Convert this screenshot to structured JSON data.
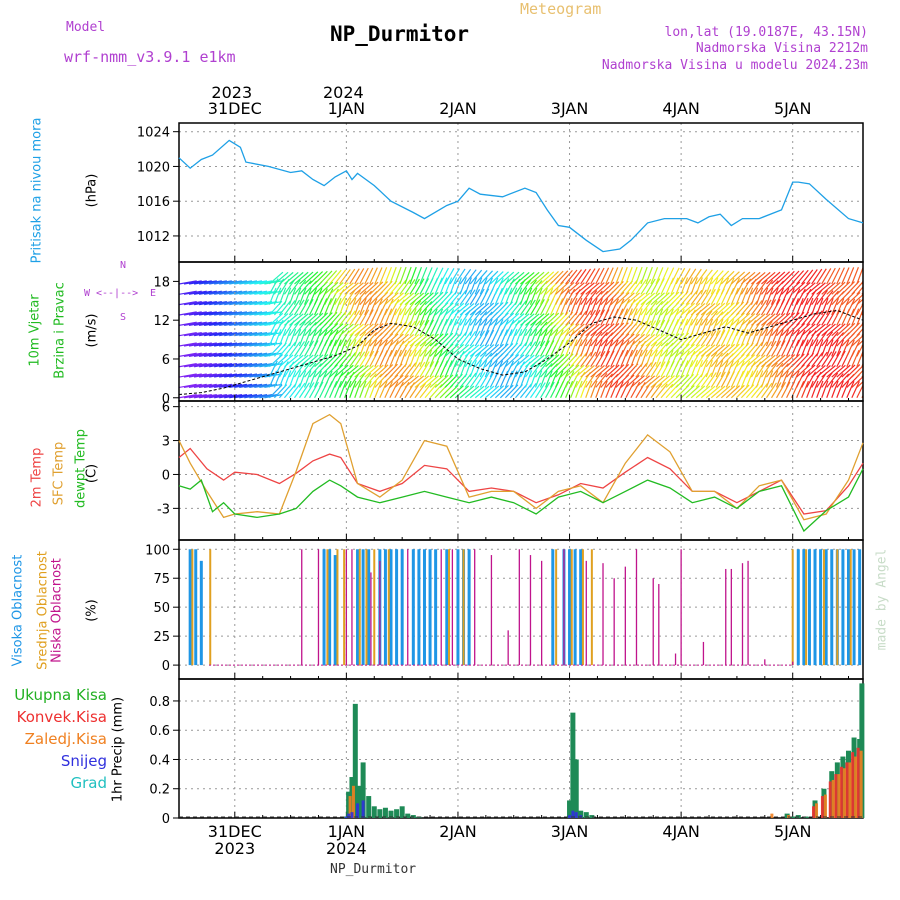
{
  "header": {
    "model_label": "Model",
    "model_value": "wrf-nmm_v3.9.1 e1km",
    "title": "NP_Durmitor",
    "meteogram": "Meteogram",
    "lonlat": "lon,lat (19.0187E, 43.15N)",
    "altitude": "Nadmorska Visina 2212m",
    "model_altitude": "Nadmorska Visina u modelu 2024.23m",
    "watermark": "made by Angel"
  },
  "time_axis": {
    "top_years": [
      {
        "t": 0.5,
        "text": "2023"
      },
      {
        "t": 1.5,
        "text": "2024"
      }
    ],
    "days": [
      {
        "t": 0.5,
        "label": "31DEC"
      },
      {
        "t": 1.5,
        "label": "1JAN"
      },
      {
        "t": 2.5,
        "label": "2JAN"
      },
      {
        "t": 3.5,
        "label": "3JAN"
      },
      {
        "t": 4.5,
        "label": "4JAN"
      },
      {
        "t": 5.5,
        "label": "5JAN"
      }
    ],
    "t_range": [
      0,
      6.13
    ],
    "bottom_years": [
      {
        "t": 0.5,
        "text": "2023"
      },
      {
        "t": 1.5,
        "text": "2024"
      }
    ],
    "footer": "NP_Durmitor"
  },
  "panels": {
    "pressure": {
      "label": "Pritisak na nivou mora",
      "unit": "(hPa)",
      "ticks": [
        "1012",
        "1016",
        "1020",
        "1024"
      ]
    },
    "wind": {
      "label1": "10m Vjetar",
      "label2": "Brzina i Pravac",
      "unit": "(m/s)",
      "ticks": [
        "0",
        "6",
        "12",
        "18"
      ],
      "compass": {
        "n": "N",
        "s": "S",
        "w": "W",
        "e": "E"
      }
    },
    "temp": {
      "l1": "2m Temp",
      "l2": "SFC Temp",
      "l3": "dewpt Temp",
      "unit": "(C)",
      "ticks": [
        "-3",
        "0",
        "3",
        "6"
      ]
    },
    "cloud": {
      "l1": "Visoka Oblacnost",
      "l2": "Srednja Oblacnost",
      "l3": "Niska Oblacnost",
      "unit": "(%)",
      "ticks": [
        "0",
        "25",
        "50",
        "75",
        "100"
      ]
    },
    "precip": {
      "label": "1hr Precip (mm)",
      "ticks": [
        "0",
        "0.2",
        "0.4",
        "0.6",
        "0.8"
      ],
      "legend": [
        {
          "text": "Ukupna Kisa",
          "color": "#22b022"
        },
        {
          "text": "Konvek.Kisa",
          "color": "#ee3030"
        },
        {
          "text": "Zaledj.Kisa",
          "color": "#f08020"
        },
        {
          "text": "Snijeg",
          "color": "#3030dd"
        },
        {
          "text": "Grad",
          "color": "#20c0c0"
        }
      ]
    }
  },
  "colors": {
    "pressure": "#1ea0e6",
    "t2m": "#ee4444",
    "tsfc": "#e0a030",
    "dewpt": "#22bb22",
    "cloud_high": "#1e96e6",
    "cloud_mid": "#e0a020",
    "cloud_low": "#c0148c",
    "model": "#b040d0"
  },
  "chart_data": [
    {
      "type": "line",
      "name_hint": "pressure",
      "ylabel": "Pritisak na nivou mora (hPa)",
      "ylim": [
        1009,
        1025
      ],
      "x": [
        0,
        0.1,
        0.2,
        0.3,
        0.45,
        0.55,
        0.6,
        0.8,
        1.0,
        1.1,
        1.2,
        1.3,
        1.4,
        1.5,
        1.55,
        1.6,
        1.75,
        1.9,
        2.1,
        2.2,
        2.4,
        2.5,
        2.6,
        2.7,
        2.9,
        3.1,
        3.2,
        3.3,
        3.4,
        3.5,
        3.65,
        3.8,
        3.95,
        4.05,
        4.2,
        4.35,
        4.55,
        4.65,
        4.75,
        4.85,
        4.95,
        5.05,
        5.2,
        5.4,
        5.5,
        5.55,
        5.65,
        5.8,
        6.0,
        6.13
      ],
      "y": [
        1021,
        1019.8,
        1020.8,
        1021.3,
        1023,
        1022.2,
        1020.5,
        1020,
        1019.3,
        1019.5,
        1018.5,
        1017.8,
        1018.8,
        1019.5,
        1018.5,
        1019.2,
        1017.8,
        1016,
        1014.7,
        1014,
        1015.5,
        1016,
        1017.5,
        1016.8,
        1016.5,
        1017.5,
        1017,
        1015,
        1013.2,
        1013,
        1011.5,
        1010.2,
        1010.5,
        1011.5,
        1013.5,
        1014,
        1014,
        1013.5,
        1014.2,
        1014.5,
        1013.2,
        1014,
        1014,
        1015,
        1018.2,
        1018.2,
        1018,
        1016.2,
        1014,
        1013.5
      ]
    },
    {
      "type": "line",
      "name_hint": "temperature",
      "ylabel": "(C)",
      "ylim": [
        -5.8,
        6.5
      ],
      "series": [
        {
          "name": "2m Temp",
          "x": [
            0,
            0.1,
            0.25,
            0.4,
            0.5,
            0.7,
            0.9,
            1.05,
            1.2,
            1.35,
            1.45,
            1.6,
            1.8,
            2.0,
            2.2,
            2.4,
            2.6,
            2.8,
            3.0,
            3.2,
            3.4,
            3.6,
            3.8,
            4.0,
            4.2,
            4.4,
            4.6,
            4.8,
            5.0,
            5.2,
            5.4,
            5.6,
            5.8,
            6.0,
            6.13
          ],
          "y": [
            1.5,
            2.3,
            0.5,
            -0.5,
            0.2,
            0,
            -0.8,
            0.1,
            1.2,
            1.8,
            1.5,
            -0.8,
            -1.5,
            -0.8,
            0.8,
            0.5,
            -1.5,
            -1.2,
            -1.5,
            -2.5,
            -1.8,
            -0.8,
            -1.2,
            0.2,
            1.5,
            0.5,
            -1.5,
            -1.5,
            -2.5,
            -1.5,
            -0.5,
            -3.5,
            -3.2,
            -1,
            1
          ]
        },
        {
          "name": "SFC Temp",
          "x": [
            0,
            0.1,
            0.25,
            0.4,
            0.5,
            0.7,
            0.9,
            1.05,
            1.2,
            1.35,
            1.45,
            1.6,
            1.8,
            2.0,
            2.2,
            2.4,
            2.6,
            2.8,
            3.0,
            3.2,
            3.4,
            3.6,
            3.8,
            4.0,
            4.2,
            4.4,
            4.6,
            4.8,
            5.0,
            5.2,
            5.4,
            5.6,
            5.8,
            6.0,
            6.13
          ],
          "y": [
            3,
            1,
            -1.5,
            -3.8,
            -3.5,
            -3.3,
            -3.5,
            0.3,
            4.5,
            5.3,
            4.5,
            -0.8,
            -2,
            -0.5,
            3,
            2.5,
            -2,
            -1.5,
            -1.5,
            -3,
            -1.5,
            -1,
            -2.5,
            1,
            3.5,
            2,
            -1.5,
            -1.5,
            -3,
            -1,
            -0.5,
            -4,
            -3.5,
            -0.5,
            2.8
          ]
        },
        {
          "name": "dewpt Temp",
          "x": [
            0,
            0.1,
            0.2,
            0.3,
            0.4,
            0.5,
            0.7,
            0.9,
            1.05,
            1.2,
            1.35,
            1.45,
            1.6,
            1.8,
            2.0,
            2.2,
            2.4,
            2.6,
            2.8,
            3.0,
            3.2,
            3.4,
            3.6,
            3.8,
            4.0,
            4.2,
            4.4,
            4.6,
            4.8,
            5.0,
            5.2,
            5.4,
            5.6,
            5.8,
            6.0,
            6.13
          ],
          "y": [
            -1,
            -1.3,
            -0.5,
            -3.3,
            -2.5,
            -3.5,
            -3.8,
            -3.5,
            -3,
            -1.5,
            -0.5,
            -1,
            -2,
            -2.5,
            -2,
            -1.5,
            -2,
            -2.5,
            -2,
            -2.5,
            -3.5,
            -2,
            -1.5,
            -2.5,
            -1.5,
            -0.5,
            -1.2,
            -2.5,
            -2,
            -3,
            -1.5,
            -1,
            -5,
            -3.2,
            -2,
            0.5
          ]
        }
      ]
    },
    {
      "type": "bar",
      "name_hint": "cloud cover",
      "ylabel": "(%)",
      "ylim": [
        0,
        100
      ],
      "series": [
        {
          "name": "Visoka Oblacnost",
          "x": [
            0.1,
            0.15,
            0.2,
            1.3,
            1.35,
            1.4,
            1.6,
            1.65,
            1.7,
            1.8,
            1.85,
            1.9,
            1.95,
            2.0,
            2.1,
            2.15,
            2.2,
            2.25,
            2.3,
            2.4,
            2.5,
            2.55,
            2.6,
            3.35,
            3.45,
            3.5,
            3.55,
            3.6,
            5.55,
            5.6,
            5.65,
            5.7,
            5.75,
            5.8,
            5.85,
            5.9,
            5.95,
            6.0,
            6.05,
            6.1
          ],
          "values": [
            100,
            100,
            90,
            100,
            100,
            95,
            100,
            100,
            100,
            100,
            100,
            100,
            100,
            100,
            100,
            100,
            100,
            100,
            100,
            100,
            100,
            100,
            100,
            100,
            100,
            100,
            100,
            100,
            100,
            100,
            100,
            100,
            100,
            100,
            100,
            100,
            100,
            100,
            100,
            100
          ]
        },
        {
          "name": "Srednja Oblacnost",
          "x": [
            0.12,
            0.28,
            1.33,
            1.42,
            1.48,
            1.62,
            1.68,
            1.75,
            1.88,
            2.42,
            2.55,
            3.38,
            3.52,
            3.62,
            3.7,
            5.5,
            5.62,
            5.78,
            5.9,
            6.02
          ],
          "values": [
            100,
            100,
            100,
            100,
            100,
            100,
            100,
            100,
            100,
            100,
            100,
            100,
            100,
            100,
            100,
            100,
            100,
            100,
            100,
            100
          ]
        },
        {
          "name": "Niska Oblacnost",
          "x": [
            1.1,
            1.25,
            1.5,
            1.55,
            1.72,
            1.8,
            2.05,
            2.35,
            2.45,
            2.65,
            2.8,
            2.95,
            3.05,
            3.15,
            3.25,
            3.45,
            3.65,
            3.8,
            3.9,
            4.0,
            4.1,
            4.25,
            4.3,
            4.45,
            4.5,
            4.7,
            4.9,
            4.95,
            5.05,
            5.1,
            5.25,
            5.5
          ],
          "values": [
            100,
            100,
            100,
            100,
            80,
            90,
            100,
            100,
            100,
            100,
            95,
            30,
            100,
            95,
            90,
            100,
            90,
            88,
            75,
            85,
            100,
            75,
            70,
            10,
            100,
            20,
            83,
            83,
            88,
            90,
            5,
            3
          ]
        }
      ]
    },
    {
      "type": "bar",
      "name_hint": "precipitation",
      "ylabel": "1hr Precip (mm)",
      "ylim": [
        0,
        0.92
      ],
      "series": [
        {
          "name": "Ukupna Kisa",
          "x": [
            1.5,
            1.52,
            1.55,
            1.58,
            1.62,
            1.65,
            1.7,
            1.75,
            1.8,
            1.85,
            1.9,
            1.95,
            2.0,
            2.05,
            2.1,
            2.15,
            3.5,
            3.53,
            3.56,
            3.6,
            3.65,
            3.7,
            5.45,
            5.5,
            5.55,
            5.62,
            5.7,
            5.78,
            5.85,
            5.9,
            5.95,
            6.0,
            6.05,
            6.1,
            6.12
          ],
          "values": [
            0.01,
            0.18,
            0.28,
            0.78,
            0.22,
            0.38,
            0.15,
            0.08,
            0.06,
            0.07,
            0.05,
            0.06,
            0.08,
            0.03,
            0.02,
            0.01,
            0.12,
            0.72,
            0.4,
            0.05,
            0.04,
            0.02,
            0.03,
            0.01,
            0.02,
            0.01,
            0.12,
            0.2,
            0.32,
            0.38,
            0.42,
            0.46,
            0.55,
            0.54,
            0.92
          ]
        },
        {
          "name": "Konvek.Kisa",
          "x": [
            5.7,
            5.78,
            5.85,
            5.9,
            5.95,
            6.0,
            6.05,
            6.1
          ],
          "values": [
            0.08,
            0.15,
            0.25,
            0.3,
            0.35,
            0.38,
            0.45,
            0.48
          ]
        },
        {
          "name": "Zaledj.Kisa",
          "x": [
            1.52,
            1.55,
            5.3,
            5.45,
            5.7,
            5.78,
            5.85,
            5.9,
            5.95,
            6.0,
            6.05,
            6.1
          ],
          "values": [
            0.15,
            0.22,
            0.03,
            0.02,
            0.1,
            0.16,
            0.26,
            0.3,
            0.34,
            0.38,
            0.42,
            0.46
          ]
        },
        {
          "name": "Snijeg",
          "x": [
            1.5,
            1.52,
            1.55,
            1.6,
            1.65,
            3.5,
            3.53,
            3.56,
            3.6
          ],
          "values": [
            0.01,
            0.03,
            0.04,
            0.1,
            0.12,
            0.02,
            0.05,
            0.04,
            0.02
          ]
        },
        {
          "name": "Grad",
          "x": [
            1.55,
            3.53
          ],
          "values": [
            0.0,
            0.0
          ]
        }
      ]
    },
    {
      "type": "scatter",
      "name_hint": "wind",
      "ylabel": "10m Vjetar Brzina i Pravac (m/s)",
      "ylim": [
        -0.5,
        21
      ],
      "series": [
        {
          "name": "wind speed",
          "x": [
            0,
            0.2,
            0.4,
            0.6,
            0.8,
            1.0,
            1.2,
            1.4,
            1.6,
            1.75,
            1.9,
            2.1,
            2.3,
            2.5,
            2.7,
            2.9,
            3.1,
            3.3,
            3.5,
            3.7,
            3.9,
            4.1,
            4.3,
            4.5,
            4.7,
            4.9,
            5.1,
            5.3,
            5.5,
            5.7,
            5.9,
            6.13
          ],
          "values": [
            0.5,
            0.8,
            1.5,
            2.5,
            3.5,
            4.5,
            5.5,
            6.5,
            8,
            10.5,
            11.5,
            11,
            9,
            6,
            4.5,
            3.5,
            4,
            6,
            8.5,
            11.5,
            12.5,
            12,
            10.5,
            9,
            10,
            11,
            10,
            11,
            12,
            13,
            13.5,
            12
          ]
        }
      ]
    }
  ]
}
